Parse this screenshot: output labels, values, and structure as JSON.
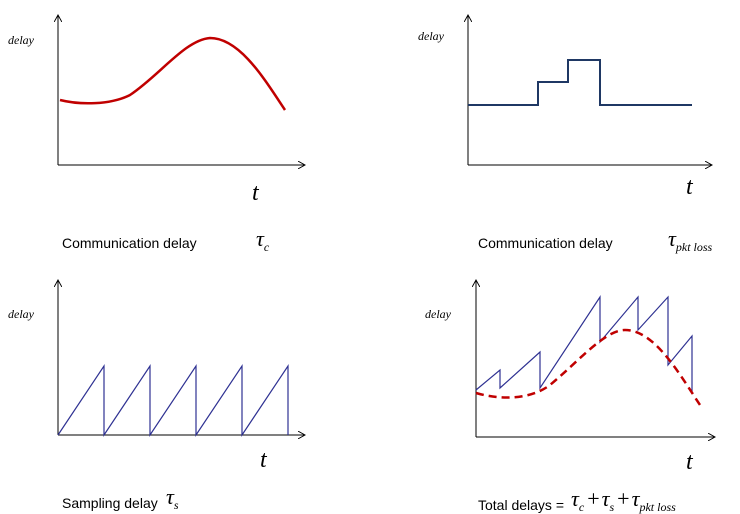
{
  "panels": [
    {
      "ylabel": "delay",
      "xlabel": "t",
      "caption": {
        "text": "Communication delay",
        "terms": [
          {
            "symbol": "τ",
            "sub": "c"
          }
        ]
      }
    },
    {
      "ylabel": "delay",
      "xlabel": "t",
      "caption": {
        "text": "Communication delay",
        "terms": [
          {
            "symbol": "τ",
            "sub": "pkt loss"
          }
        ]
      }
    },
    {
      "ylabel": "delay",
      "xlabel": "t",
      "caption": {
        "text": "Sampling delay",
        "terms": [
          {
            "symbol": "τ",
            "sub": "s"
          }
        ]
      }
    },
    {
      "ylabel": "delay",
      "xlabel": "t",
      "caption": {
        "text": "Total delays =",
        "operator": "+",
        "terms": [
          {
            "symbol": "τ",
            "sub": "c"
          },
          {
            "symbol": "τ",
            "sub": "s"
          },
          {
            "symbol": "τ",
            "sub": "pkt loss"
          }
        ]
      }
    }
  ]
}
